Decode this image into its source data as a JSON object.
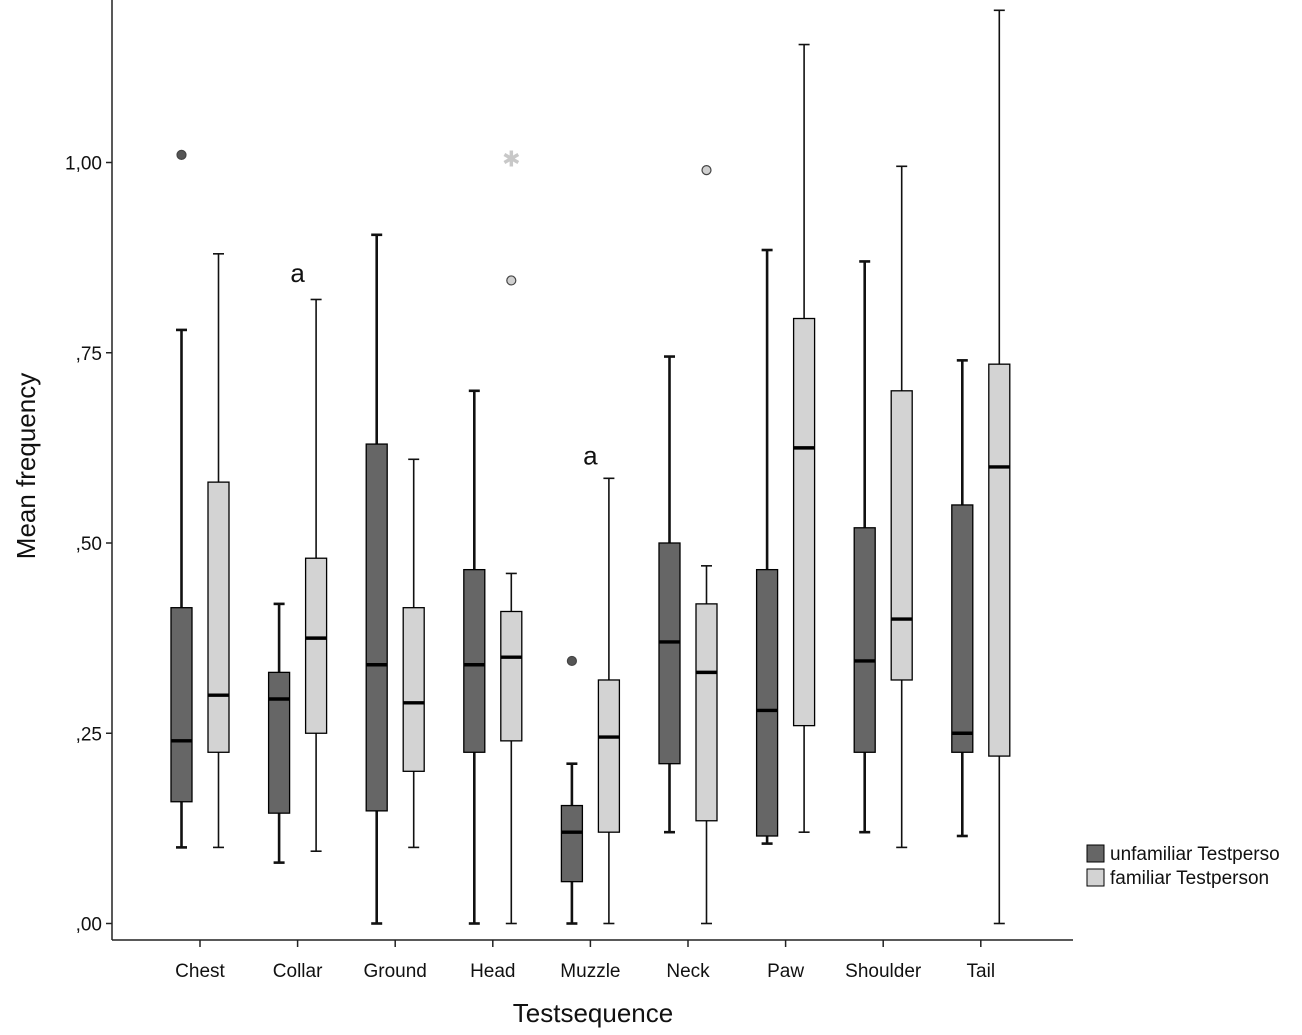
{
  "chart_data": {
    "type": "boxplot",
    "xlabel": "Testsequence",
    "ylabel": "Mean frequency",
    "ylim": [
      0,
      1.2
    ],
    "yticks": [
      {
        "value": 0,
        "label": ",00"
      },
      {
        "value": 0.25,
        "label": ",25"
      },
      {
        "value": 0.5,
        "label": ",50"
      },
      {
        "value": 0.75,
        "label": ",75"
      },
      {
        "value": 1.0,
        "label": "1,00"
      }
    ],
    "categories": [
      "Chest",
      "Collar",
      "Ground",
      "Head",
      "Muzzle",
      "Neck",
      "Paw",
      "Shoulder",
      "Tail"
    ],
    "series": [
      {
        "name": "unfamiliar Testperso",
        "color": "#666666",
        "boxes": [
          {
            "category": "Chest",
            "min": 0.1,
            "q1": 0.16,
            "median": 0.24,
            "q3": 0.415,
            "max": 0.78,
            "outliers": [
              {
                "value": 1.01,
                "marker": "circle"
              }
            ]
          },
          {
            "category": "Collar",
            "min": 0.08,
            "q1": 0.145,
            "median": 0.295,
            "q3": 0.33,
            "max": 0.42,
            "outliers": []
          },
          {
            "category": "Ground",
            "min": 0.0,
            "q1": 0.148,
            "median": 0.34,
            "q3": 0.63,
            "max": 0.905,
            "outliers": []
          },
          {
            "category": "Head",
            "min": 0.0,
            "q1": 0.225,
            "median": 0.34,
            "q3": 0.465,
            "max": 0.7,
            "outliers": []
          },
          {
            "category": "Muzzle",
            "min": 0.0,
            "q1": 0.055,
            "median": 0.12,
            "q3": 0.155,
            "max": 0.21,
            "outliers": [
              {
                "value": 0.345,
                "marker": "circle"
              }
            ]
          },
          {
            "category": "Neck",
            "min": 0.12,
            "q1": 0.21,
            "median": 0.37,
            "q3": 0.5,
            "max": 0.745,
            "outliers": []
          },
          {
            "category": "Paw",
            "min": 0.105,
            "q1": 0.115,
            "median": 0.28,
            "q3": 0.465,
            "max": 0.885,
            "outliers": []
          },
          {
            "category": "Shoulder",
            "min": 0.12,
            "q1": 0.225,
            "median": 0.345,
            "q3": 0.52,
            "max": 0.87,
            "outliers": []
          },
          {
            "category": "Tail",
            "min": 0.115,
            "q1": 0.225,
            "median": 0.25,
            "q3": 0.55,
            "max": 0.74,
            "outliers": []
          }
        ]
      },
      {
        "name": "familiar Testperson",
        "color": "#d3d3d3",
        "boxes": [
          {
            "category": "Chest",
            "min": 0.1,
            "q1": 0.225,
            "median": 0.3,
            "q3": 0.58,
            "max": 0.88,
            "outliers": []
          },
          {
            "category": "Collar",
            "min": 0.095,
            "q1": 0.25,
            "median": 0.375,
            "q3": 0.48,
            "max": 0.82,
            "outliers": []
          },
          {
            "category": "Ground",
            "min": 0.1,
            "q1": 0.2,
            "median": 0.29,
            "q3": 0.415,
            "max": 0.61,
            "outliers": []
          },
          {
            "category": "Head",
            "min": 0.0,
            "q1": 0.24,
            "median": 0.35,
            "q3": 0.41,
            "max": 0.46,
            "outliers": [
              {
                "value": 0.845,
                "marker": "circle"
              },
              {
                "value": 1.005,
                "marker": "star"
              }
            ]
          },
          {
            "category": "Muzzle",
            "min": 0.0,
            "q1": 0.12,
            "median": 0.245,
            "q3": 0.32,
            "max": 0.585,
            "outliers": []
          },
          {
            "category": "Neck",
            "min": 0.0,
            "q1": 0.135,
            "median": 0.33,
            "q3": 0.42,
            "max": 0.47,
            "outliers": [
              {
                "value": 0.99,
                "marker": "circle"
              }
            ]
          },
          {
            "category": "Paw",
            "min": 0.12,
            "q1": 0.26,
            "median": 0.625,
            "q3": 0.795,
            "max": 1.155,
            "outliers": []
          },
          {
            "category": "Shoulder",
            "min": 0.1,
            "q1": 0.32,
            "median": 0.4,
            "q3": 0.7,
            "max": 0.995,
            "outliers": []
          },
          {
            "category": "Tail",
            "min": 0.0,
            "q1": 0.22,
            "median": 0.6,
            "q3": 0.735,
            "max": 1.2,
            "outliers": []
          }
        ]
      }
    ],
    "annotations": [
      {
        "text": "a",
        "category": "Collar",
        "value": 0.855
      },
      {
        "text": "a",
        "category": "Muzzle",
        "value": 0.615
      }
    ],
    "legend": {
      "position": "right",
      "entries": [
        "unfamiliar Testperso",
        "familiar Testperson"
      ]
    }
  }
}
